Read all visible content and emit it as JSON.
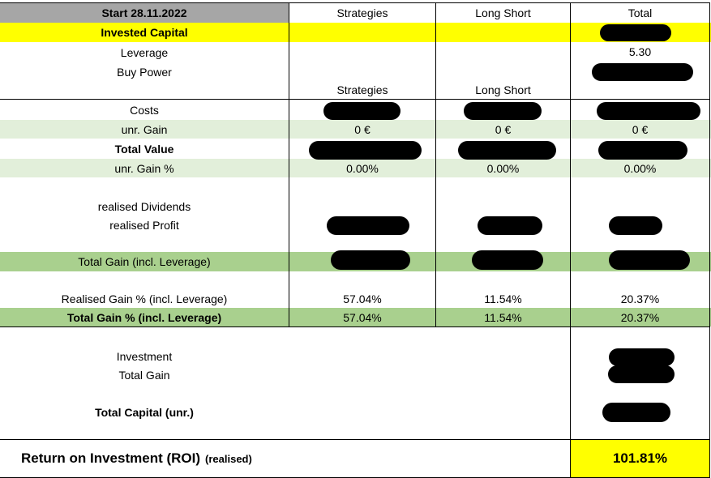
{
  "header": {
    "start_label": "Start 28.11.2022",
    "col_strategies": "Strategies",
    "col_long_short": "Long Short",
    "col_total": "Total"
  },
  "capital": {
    "invested_capital": "Invested Capital",
    "leverage": "Leverage",
    "leverage_total": "5.30",
    "buy_power": "Buy Power",
    "sub_strategies": "Strategies",
    "sub_long_short": "Long Short"
  },
  "values": {
    "costs": "Costs",
    "unr_gain": "unr. Gain",
    "unr_gain_strategies": "0 €",
    "unr_gain_long_short": "0 €",
    "unr_gain_total": "0 €",
    "total_value": "Total Value",
    "unr_gain_pct": "unr. Gain %",
    "unr_gain_pct_strategies": "0.00%",
    "unr_gain_pct_long_short": "0.00%",
    "unr_gain_pct_total": "0.00%"
  },
  "realised": {
    "dividends": "realised Dividends",
    "profit": "realised Profit",
    "total_gain": "Total Gain (incl. Leverage)",
    "realised_gain_pct": "Realised Gain % (incl. Leverage)",
    "realised_gain_pct_strategies": "57.04%",
    "realised_gain_pct_long_short": "11.54%",
    "realised_gain_pct_total": "20.37%",
    "total_gain_pct": "Total Gain % (incl. Leverage)",
    "total_gain_pct_strategies": "57.04%",
    "total_gain_pct_long_short": "11.54%",
    "total_gain_pct_total": "20.37%"
  },
  "summary": {
    "investment": "Investment",
    "total_gain": "Total Gain",
    "total_capital": "Total Capital (unr.)"
  },
  "roi": {
    "label": "Return on Investment (ROI)",
    "label_note": "(realised)",
    "value": "101.81%"
  },
  "colors": {
    "header_gray": "#a6a6a6",
    "yellow": "#ffff00",
    "light_green": "#e2efda",
    "mid_green": "#a9d08e"
  }
}
